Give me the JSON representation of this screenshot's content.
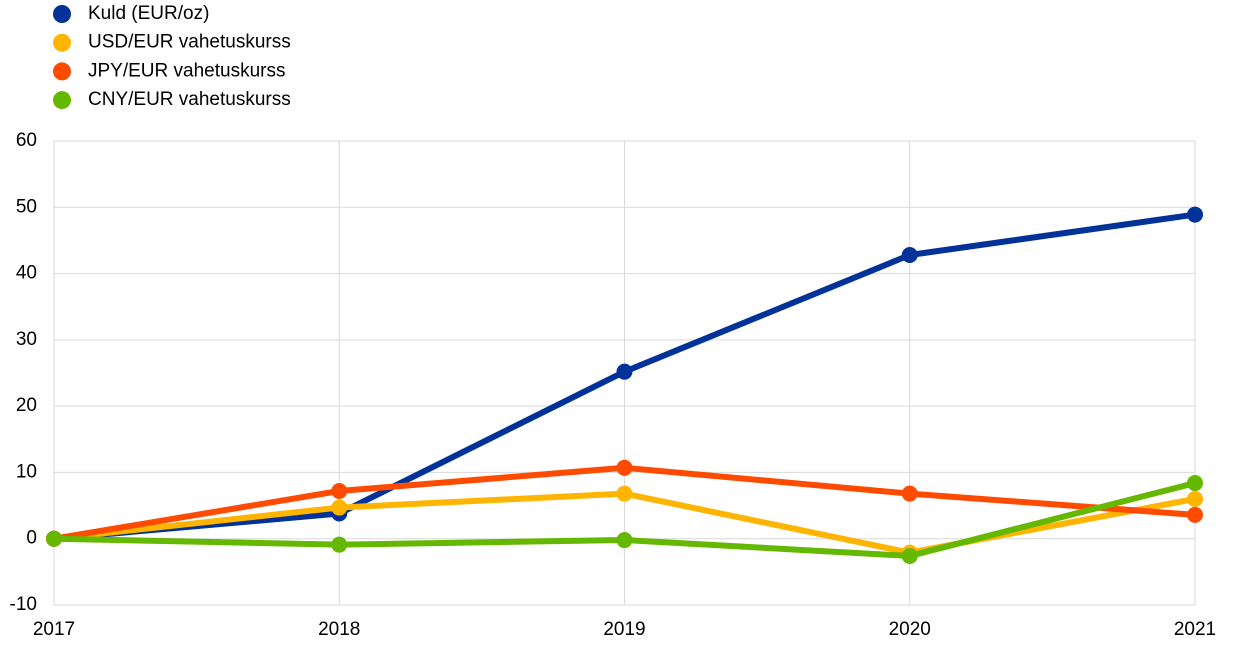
{
  "chart_data": {
    "type": "line",
    "x": [
      2017,
      2018,
      2019,
      2020,
      2021
    ],
    "series": [
      {
        "name": "Kuld (EUR/oz)",
        "color": "#003299",
        "values": [
          0,
          3.8,
          25.2,
          42.8,
          48.9
        ]
      },
      {
        "name": "USD/EUR vahetuskurss",
        "color": "#ffb400",
        "values": [
          0,
          4.7,
          6.8,
          -2.1,
          6.0
        ]
      },
      {
        "name": "JPY/EUR vahetuskurss",
        "color": "#ff4b00",
        "values": [
          0,
          7.2,
          10.7,
          6.8,
          3.6
        ]
      },
      {
        "name": "CNY/EUR vahetuskurss",
        "color": "#65b800",
        "values": [
          0,
          -0.9,
          -0.2,
          -2.6,
          8.4
        ]
      }
    ],
    "xlim": [
      2017,
      2021
    ],
    "xticks": [
      2017,
      2018,
      2019,
      2020,
      2021
    ],
    "ylim": [
      -10,
      60
    ],
    "yticks": [
      -10,
      0,
      10,
      20,
      30,
      40,
      50,
      60
    ],
    "grid": true,
    "legend": "top-left"
  }
}
